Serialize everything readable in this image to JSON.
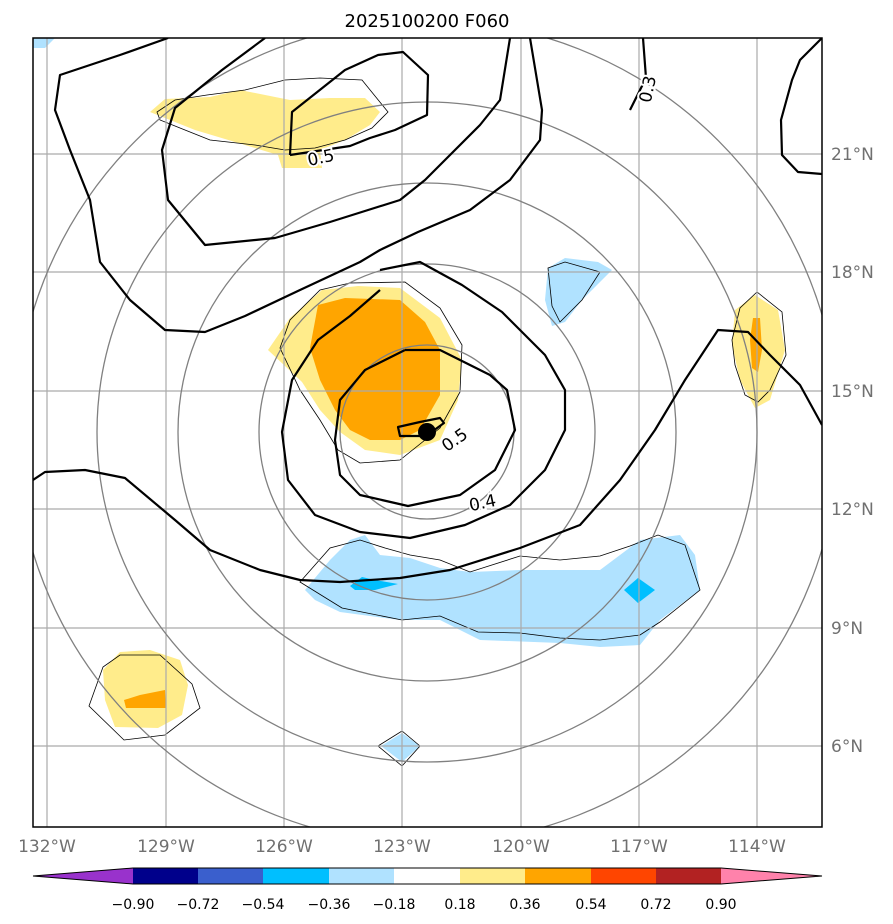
{
  "chart_data": {
    "type": "contour-map",
    "title": "2025100200 F060",
    "lon_range": [
      -132.5,
      -112.5
    ],
    "lat_range": [
      4,
      24
    ],
    "x_ticks": [
      {
        "value": -132,
        "label": "132°W"
      },
      {
        "value": -129,
        "label": "129°W"
      },
      {
        "value": -126,
        "label": "126°W"
      },
      {
        "value": -123,
        "label": "123°W"
      },
      {
        "value": -120,
        "label": "120°W"
      },
      {
        "value": -117,
        "label": "117°W"
      },
      {
        "value": -114,
        "label": "114°W"
      }
    ],
    "y_ticks": [
      {
        "value": 6,
        "label": "6°N"
      },
      {
        "value": 9,
        "label": "9°N"
      },
      {
        "value": 12,
        "label": "12°N"
      },
      {
        "value": 15,
        "label": "15°N"
      },
      {
        "value": 18,
        "label": "18°N"
      },
      {
        "value": 21,
        "label": "21°N"
      }
    ],
    "center": {
      "lon": -122.35,
      "lat": 13.9
    },
    "range_rings_deg": [
      2,
      4,
      6,
      8,
      10
    ],
    "contour_labels": [
      {
        "text": "0.3",
        "lon": -116.9,
        "lat": 22.7,
        "rotate": -78
      },
      {
        "text": "0.5",
        "lon": -125.2,
        "lat": 20.95,
        "rotate": -12
      },
      {
        "text": "0.5",
        "lon": -121.8,
        "lat": 13.8,
        "rotate": -35
      },
      {
        "text": "0.4",
        "lon": -121.1,
        "lat": 12.2,
        "rotate": -12
      }
    ],
    "colorbar": {
      "colors": [
        "#9932cc",
        "#00008b",
        "#3a5fcd",
        "#00bfff",
        "#b0e2ff",
        "#ffffff",
        "#ffec8b",
        "#ffa500",
        "#ff4500",
        "#b22222",
        "#ff82ab"
      ],
      "tick_labels": [
        "−0.90",
        "−0.72",
        "−0.54",
        "−0.36",
        "−0.18",
        "0.18",
        "0.36",
        "0.54",
        "0.72",
        "0.90"
      ]
    }
  }
}
